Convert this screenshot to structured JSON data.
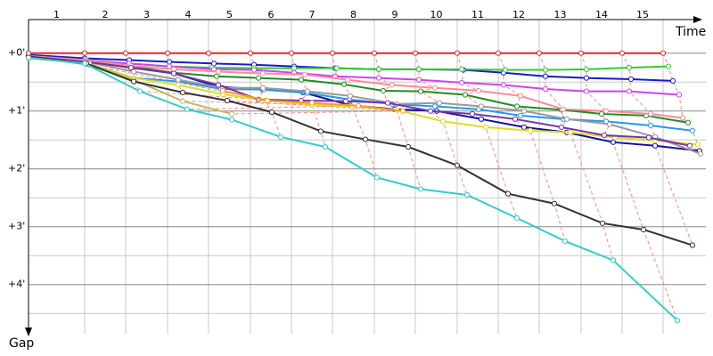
{
  "chart_data": {
    "type": "line",
    "x_label": "Time",
    "y_label": "Gap",
    "categories": [
      "1",
      "2",
      "3",
      "4",
      "5",
      "6",
      "7",
      "8",
      "9",
      "10",
      "11",
      "12",
      "13",
      "14",
      "15"
    ],
    "xlim": [
      0,
      760
    ],
    "ylim": [
      -0.58,
      4.85
    ],
    "yticks": [
      {
        "value": 0,
        "label": "+0'"
      },
      {
        "value": 1,
        "label": "+1'"
      },
      {
        "value": 2,
        "label": "+2'"
      },
      {
        "value": 3,
        "label": "+3'"
      },
      {
        "value": 4,
        "label": "+4'"
      }
    ],
    "yticks_minor": [
      0.5,
      1.5,
      2.5,
      3.5,
      4.5
    ],
    "grid": true,
    "series": [
      {
        "color": "#ee2222",
        "x": [
          0,
          63,
          109,
          156,
          202,
          249,
          295,
          341,
          388,
          434,
          481,
          527,
          573,
          620,
          666,
          712
        ],
        "values": [
          0,
          0,
          0,
          0,
          0,
          0,
          0,
          0,
          0,
          0,
          0,
          0,
          0,
          0,
          0,
          0
        ]
      },
      {
        "color": "#1a1acc",
        "x": [
          0,
          63,
          113,
          158,
          208,
          253,
          298,
          344,
          393,
          438,
          488,
          533,
          580,
          626,
          676,
          723
        ],
        "values": [
          0.03,
          0.09,
          0.12,
          0.15,
          0.18,
          0.2,
          0.23,
          0.26,
          0.28,
          0.28,
          0.29,
          0.34,
          0.4,
          0.43,
          0.45,
          0.48
        ]
      },
      {
        "color": "#33cc33",
        "x": [
          0,
          63,
          113,
          158,
          206,
          253,
          298,
          346,
          393,
          438,
          486,
          535,
          580,
          626,
          674,
          718
        ],
        "values": [
          0.05,
          0.12,
          0.18,
          0.23,
          0.25,
          0.26,
          0.26,
          0.26,
          0.28,
          0.28,
          0.28,
          0.29,
          0.29,
          0.28,
          0.25,
          0.23
        ]
      },
      {
        "color": "#cc44ee",
        "x": [
          0,
          63,
          113,
          158,
          208,
          253,
          298,
          344,
          393,
          438,
          486,
          533,
          580,
          626,
          674,
          730
        ],
        "values": [
          0.05,
          0.12,
          0.18,
          0.23,
          0.28,
          0.29,
          0.34,
          0.4,
          0.43,
          0.46,
          0.51,
          0.55,
          0.62,
          0.66,
          0.66,
          0.72
        ]
      },
      {
        "color": "#228b22",
        "x": [
          0,
          65,
          115,
          163,
          211,
          258,
          306,
          354,
          398,
          440,
          490,
          548,
          598,
          643,
          693,
          740
        ],
        "values": [
          0.08,
          0.15,
          0.23,
          0.34,
          0.4,
          0.43,
          0.46,
          0.54,
          0.65,
          0.66,
          0.72,
          0.92,
          0.98,
          1.05,
          1.08,
          1.2
        ]
      },
      {
        "color": "#1010a0",
        "x": [
          0,
          65,
          115,
          163,
          213,
          263,
          308,
          361,
          411,
          458,
          508,
          556,
          604,
          656,
          703,
          753
        ],
        "values": [
          0.05,
          0.15,
          0.25,
          0.35,
          0.58,
          0.63,
          0.68,
          0.9,
          0.97,
          1.0,
          1.14,
          1.28,
          1.37,
          1.54,
          1.6,
          1.69
        ]
      },
      {
        "color": "#2299ee",
        "x": [
          0,
          68,
          118,
          168,
          216,
          264,
          313,
          360,
          408,
          456,
          505,
          552,
          600,
          648,
          698,
          745
        ],
        "values": [
          0.06,
          0.2,
          0.43,
          0.49,
          0.62,
          0.63,
          0.69,
          0.8,
          0.88,
          0.92,
          0.97,
          1.08,
          1.14,
          1.18,
          1.25,
          1.34
        ]
      },
      {
        "color": "#dddd22",
        "x": [
          0,
          68,
          118,
          168,
          218,
          266,
          318,
          363,
          413,
          465,
          513,
          563,
          608,
          658,
          703,
          751
        ],
        "values": [
          0.09,
          0.18,
          0.43,
          0.55,
          0.71,
          0.82,
          0.89,
          0.92,
          0.98,
          1.18,
          1.28,
          1.34,
          1.37,
          1.46,
          1.51,
          1.58
        ]
      },
      {
        "color": "#ff8899",
        "x": [
          0,
          65,
          115,
          163,
          213,
          263,
          310,
          358,
          408,
          456,
          505,
          552,
          600,
          648,
          698,
          734
        ],
        "values": [
          0.05,
          0.12,
          0.22,
          0.28,
          0.32,
          0.35,
          0.37,
          0.46,
          0.55,
          0.6,
          0.65,
          0.74,
          0.97,
          1.0,
          1.05,
          1.12
        ]
      },
      {
        "color": "#999999",
        "x": [
          0,
          65,
          118,
          168,
          218,
          263,
          313,
          361,
          413,
          461,
          508,
          556,
          604,
          652,
          703,
          754
        ],
        "values": [
          0.06,
          0.15,
          0.32,
          0.46,
          0.6,
          0.6,
          0.66,
          0.74,
          0.88,
          0.86,
          0.92,
          1.0,
          1.14,
          1.23,
          1.45,
          1.74
        ]
      },
      {
        "color": "#7733aa",
        "x": [
          0,
          65,
          115,
          163,
          213,
          258,
          306,
          356,
          403,
          451,
          498,
          546,
          598,
          646,
          696,
          742
        ],
        "values": [
          0.06,
          0.15,
          0.25,
          0.35,
          0.55,
          0.8,
          0.82,
          0.83,
          0.86,
          1.0,
          1.05,
          1.14,
          1.28,
          1.42,
          1.46,
          1.6
        ]
      },
      {
        "color": "#ff9922",
        "x": [
          218,
          268,
          318,
          370,
          420
        ],
        "values": [
          0.65,
          0.82,
          0.86,
          0.91,
          1.0
        ]
      },
      {
        "color": "#bbbb66",
        "x": [
          0,
          68,
          118,
          173,
          228
        ],
        "values": [
          0.09,
          0.18,
          0.46,
          0.83,
          1.05
        ]
      },
      {
        "color": "#333333",
        "x": [
          0,
          65,
          118,
          173,
          223,
          273,
          328,
          378,
          426,
          481,
          538,
          590,
          644,
          690,
          745
        ],
        "values": [
          0.06,
          0.18,
          0.49,
          0.68,
          0.82,
          1.02,
          1.35,
          1.49,
          1.62,
          1.94,
          2.43,
          2.6,
          2.94,
          3.05,
          3.32
        ]
      },
      {
        "color": "#33cccc",
        "x": [
          0,
          63,
          125,
          178,
          228,
          283,
          333,
          391,
          440,
          492,
          548,
          602,
          656,
          728
        ],
        "values": [
          0.08,
          0.18,
          0.66,
          0.97,
          1.15,
          1.45,
          1.62,
          2.15,
          2.35,
          2.45,
          2.85,
          3.25,
          3.58,
          4.62
        ]
      }
    ]
  }
}
